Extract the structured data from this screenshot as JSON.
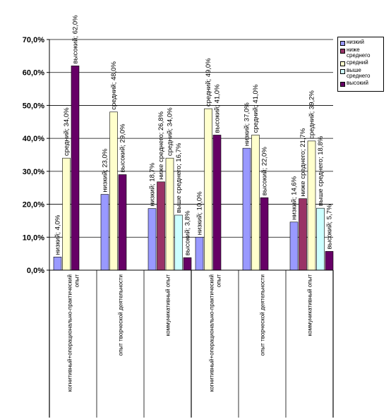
{
  "chart_data": {
    "type": "bar",
    "categories": [
      "когнитивный+операционально-практический опыт",
      "опыт творческой деятельности",
      "коммуникативный опыт",
      "когнитивный+операционально-практический опыт",
      "опыт творческой деятельности",
      "коммуникативный опыт"
    ],
    "series": [
      {
        "name": "низкий",
        "color": "#9999ff",
        "values": [
          4.0,
          23.0,
          18.7,
          10.0,
          37.0,
          14.6
        ]
      },
      {
        "name": "ниже среднего",
        "color": "#993366",
        "values": [
          null,
          null,
          26.8,
          null,
          null,
          21.7
        ]
      },
      {
        "name": "средний",
        "color": "#ffffcc",
        "values": [
          34.0,
          48.0,
          34.0,
          49.0,
          41.0,
          39.2
        ]
      },
      {
        "name": "выше среднего",
        "color": "#ccffff",
        "values": [
          null,
          null,
          16.7,
          null,
          null,
          18.8
        ]
      },
      {
        "name": "высокий",
        "color": "#660066",
        "values": [
          62.0,
          29.0,
          3.8,
          41.0,
          22.0,
          5.7
        ]
      }
    ],
    "data_labels": [
      [
        "низкий; 4,0%",
        null,
        "средний; 34,0%",
        null,
        "высокий; 62,0%"
      ],
      [
        "низкий; 23,0%",
        null,
        "средний; 48,0%",
        null,
        "высокий; 29,0%"
      ],
      [
        "низкий; 18,7%",
        "ниже среднего; 26,8%",
        "средний; 34,0%",
        "выше среднего; 16,7%",
        "высокий; 3,8%"
      ],
      [
        "низкий; 10,0%",
        null,
        "средний; 49,0%",
        null,
        "высокий; 41,0%"
      ],
      [
        "низкий; 37,0%",
        null,
        "средний; 41,0%",
        null,
        "высокий; 22,0%"
      ],
      [
        "низкий; 14,6%",
        "ниже среднего; 21,7%",
        "средний; 39,2%",
        "выше среднего; 18,8%",
        "высокий; 5,7%"
      ]
    ],
    "y_ticks": [
      "0,0%",
      "10,0%",
      "20,0%",
      "30,0%",
      "40,0%",
      "50,0%",
      "60,0%",
      "70,0%"
    ],
    "ylim": [
      0,
      70
    ],
    "y_major_unit": 10,
    "grid": true,
    "legend_position": "right",
    "title": "",
    "xlabel": "",
    "ylabel": ""
  }
}
